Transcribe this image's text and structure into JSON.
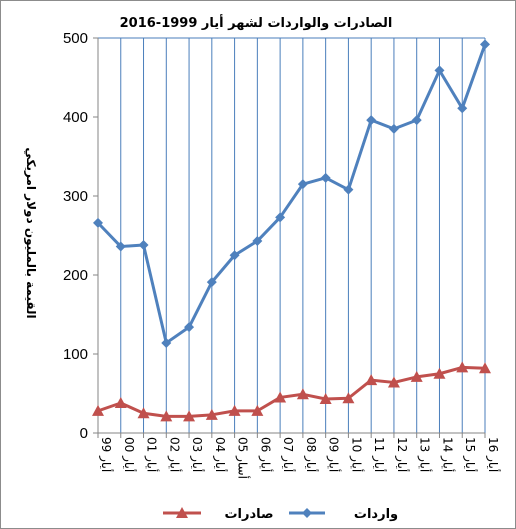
{
  "chart_data": {
    "type": "line",
    "title": "الصادرات والواردات لشهر أيار 1999-2016",
    "ylabel": "القيمة بالمليون دولار امريكي",
    "xlabel": "",
    "ylim": [
      0,
      500
    ],
    "yticks": [
      0,
      100,
      200,
      300,
      400,
      500
    ],
    "categories": [
      "أيار 99",
      "أيار 00",
      "أيار 01",
      "أيار 02",
      "أيار 03",
      "أيار 04",
      "أسار 05",
      "أيار 06",
      "أيار 07",
      "أيار 08",
      "أيار 09",
      "أيار 10",
      "أيار 11",
      "أيار 12",
      "أيار 13",
      "أيار 14",
      "أيار 15",
      "أيار 16"
    ],
    "series": [
      {
        "name": "صادرات",
        "color": "#c0504d",
        "marker": "triangle",
        "values": [
          28,
          38,
          25,
          21,
          21,
          23,
          28,
          28,
          45,
          49,
          43,
          44,
          67,
          64,
          71,
          75,
          83,
          82
        ]
      },
      {
        "name": "واردات",
        "color": "#4f81bd",
        "marker": "diamond",
        "values": [
          266,
          236,
          238,
          114,
          134,
          191,
          225,
          243,
          273,
          315,
          323,
          308,
          396,
          385,
          396,
          459,
          411,
          492
        ]
      }
    ],
    "grid": "vertical and top gridlines",
    "legend": "bottom"
  }
}
